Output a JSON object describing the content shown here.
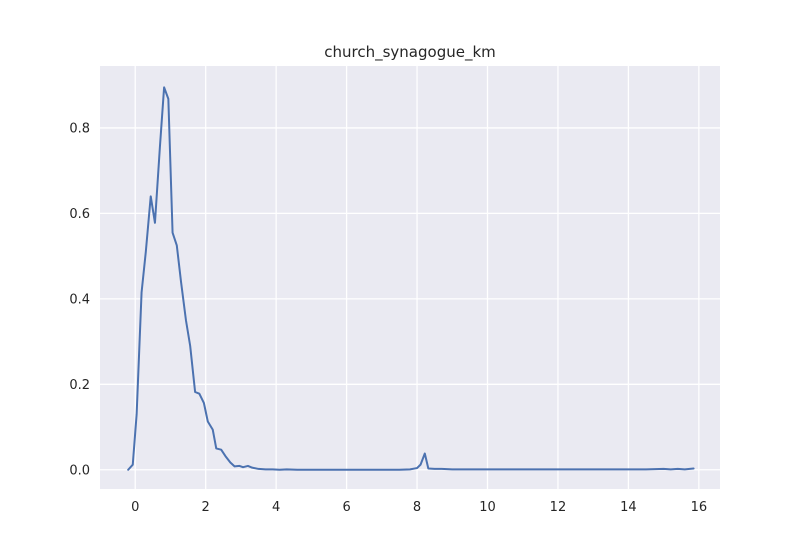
{
  "chart_data": {
    "type": "line",
    "title": "church_synagogue_km",
    "xlabel": "",
    "ylabel": "",
    "xlim": [
      -1.0,
      16.6
    ],
    "ylim": [
      -0.045,
      0.945
    ],
    "x_ticks": [
      0,
      2,
      4,
      6,
      8,
      10,
      12,
      14,
      16
    ],
    "y_ticks": [
      0.0,
      0.2,
      0.4,
      0.6,
      0.8
    ],
    "y_tick_labels": [
      "0.0",
      "0.2",
      "0.4",
      "0.6",
      "0.8"
    ],
    "grid": true,
    "background": "#eaeaf2",
    "line_color": "#4c72b0",
    "series": [
      {
        "x": [
          -0.2,
          -0.07,
          0.04,
          0.18,
          0.3,
          0.44,
          0.56,
          0.7,
          0.82,
          0.94,
          1.06,
          1.18,
          1.3,
          1.44,
          1.56,
          1.7,
          1.82,
          1.95,
          2.06,
          2.2,
          2.3,
          2.44,
          2.56,
          2.7,
          2.82,
          2.96,
          3.06,
          3.2,
          3.32,
          3.5,
          3.7,
          3.9,
          4.1,
          4.3,
          4.6,
          5.0,
          5.5,
          6.0,
          6.5,
          7.0,
          7.5,
          7.8,
          8.0,
          8.1,
          8.22,
          8.32,
          8.5,
          8.7,
          9.0,
          9.5,
          10.0,
          11.0,
          12.0,
          13.0,
          14.0,
          14.5,
          15.0,
          15.2,
          15.4,
          15.6,
          15.85
        ],
        "y": [
          0.0,
          0.012,
          0.13,
          0.415,
          0.51,
          0.64,
          0.578,
          0.755,
          0.895,
          0.868,
          0.555,
          0.525,
          0.44,
          0.35,
          0.29,
          0.182,
          0.178,
          0.156,
          0.113,
          0.094,
          0.05,
          0.047,
          0.032,
          0.017,
          0.008,
          0.009,
          0.006,
          0.009,
          0.005,
          0.002,
          0.001,
          0.001,
          0.0,
          0.001,
          0.0,
          0.0,
          0.0,
          0.0,
          0.0,
          0.0,
          0.0,
          0.001,
          0.004,
          0.012,
          0.038,
          0.003,
          0.002,
          0.002,
          0.001,
          0.001,
          0.001,
          0.001,
          0.001,
          0.001,
          0.001,
          0.001,
          0.002,
          0.001,
          0.002,
          0.001,
          0.003
        ]
      }
    ]
  }
}
